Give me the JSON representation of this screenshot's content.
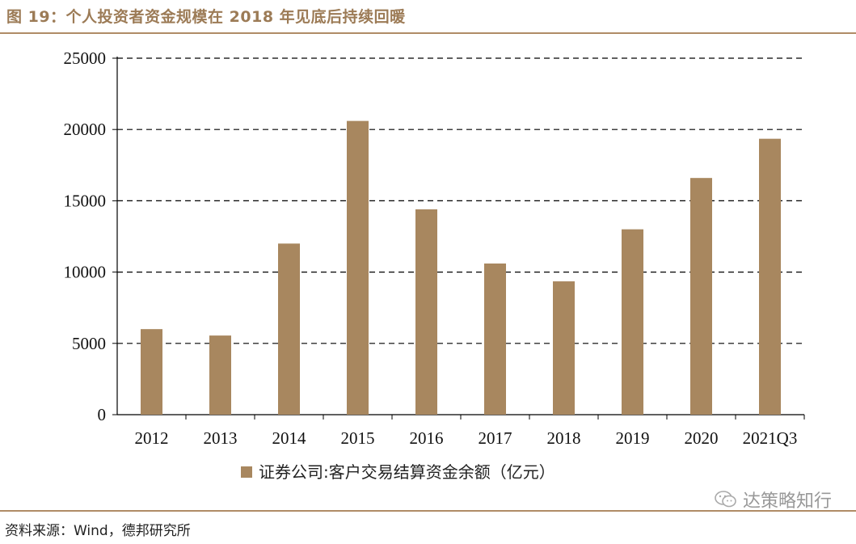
{
  "header": {
    "title": "图 19：个人投资者资金规模在 2018 年见底后持续回暖"
  },
  "chart_data": {
    "type": "bar",
    "categories": [
      "2012",
      "2013",
      "2014",
      "2015",
      "2016",
      "2017",
      "2018",
      "2019",
      "2020",
      "2021Q3"
    ],
    "series": [
      {
        "name": "证券公司:客户交易结算资金余额（亿元）",
        "values": [
          6000,
          5550,
          12000,
          20600,
          14400,
          10600,
          9350,
          13000,
          16600,
          19350
        ]
      }
    ],
    "ylim": [
      0,
      25000
    ],
    "yticks": [
      0,
      5000,
      10000,
      15000,
      20000,
      25000
    ],
    "grid": true,
    "legend_position": "bottom-center",
    "bar_color": "#a8875f"
  },
  "footer": {
    "source": "资料来源：Wind，德邦研究所"
  },
  "watermark": {
    "text": "达策略知行",
    "icon": "wechat-bubble-icon"
  }
}
